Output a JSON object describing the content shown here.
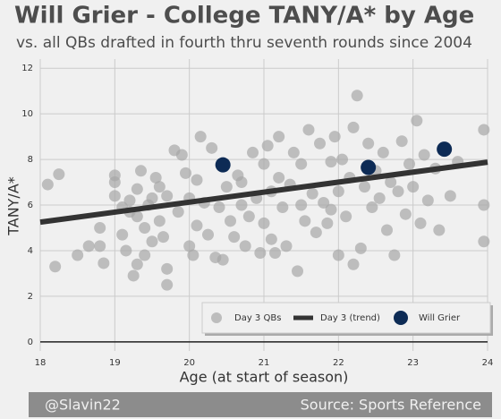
{
  "chart_data": {
    "type": "scatter",
    "title": "Will Grier - College TANY/A* by Age",
    "subtitle": "vs. all QBs drafted in fourth thru seventh rounds since 2004",
    "x_label": "Age (at start of season)",
    "y_label": "TANY/A*",
    "credit": "@Slavin22",
    "source": "Source: Sports Reference",
    "xlim": [
      18,
      24
    ],
    "xticks": [
      18,
      19,
      20,
      21,
      22,
      23,
      24
    ],
    "ylim": [
      -0.4,
      12.4
    ],
    "yticks": [
      0,
      2,
      4,
      6,
      8,
      10,
      12
    ],
    "baseline": 0,
    "grid": true,
    "legend": "lower right",
    "series": [
      {
        "name": "Day 3 QBs",
        "type": "scatter",
        "color": "#a6a6a6",
        "x": [
          18.1,
          18.25,
          18.2,
          18.5,
          18.65,
          18.8,
          18.85,
          18.8,
          19.0,
          19.0,
          19.0,
          19.1,
          19.1,
          19.15,
          19.2,
          19.2,
          19.25,
          19.3,
          19.3,
          19.3,
          19.35,
          19.4,
          19.4,
          19.45,
          19.5,
          19.5,
          19.55,
          19.6,
          19.65,
          19.7,
          19.7,
          19.7,
          19.8,
          19.85,
          19.9,
          19.95,
          20.0,
          20.0,
          20.05,
          20.1,
          20.1,
          20.15,
          20.2,
          20.25,
          20.3,
          20.35,
          20.4,
          20.45,
          20.5,
          20.55,
          20.6,
          20.65,
          20.7,
          20.75,
          20.8,
          20.85,
          20.9,
          20.95,
          21.0,
          21.0,
          21.05,
          21.1,
          21.1,
          21.15,
          21.2,
          21.2,
          21.25,
          21.3,
          21.35,
          21.4,
          21.45,
          21.5,
          21.5,
          21.55,
          21.6,
          21.65,
          21.7,
          21.75,
          21.8,
          21.85,
          21.9,
          21.95,
          22.0,
          22.0,
          22.05,
          22.1,
          22.15,
          22.2,
          22.25,
          22.3,
          22.35,
          22.4,
          22.45,
          22.5,
          22.55,
          22.6,
          22.65,
          22.7,
          22.75,
          22.8,
          22.85,
          22.9,
          22.95,
          23.0,
          23.05,
          23.1,
          23.15,
          23.2,
          23.3,
          23.35,
          23.5,
          23.6,
          23.95,
          23.95,
          23.95,
          22.2,
          21.9,
          20.7,
          19.6
        ],
        "values": [
          6.9,
          7.35,
          3.3,
          3.8,
          4.2,
          4.2,
          3.45,
          5.0,
          6.4,
          7.3,
          7.0,
          5.9,
          4.7,
          4.0,
          5.7,
          6.2,
          2.9,
          3.4,
          5.5,
          6.7,
          7.5,
          3.8,
          5.0,
          6.0,
          4.4,
          6.3,
          7.2,
          5.3,
          4.6,
          6.4,
          2.5,
          3.2,
          8.4,
          5.7,
          8.2,
          7.4,
          6.3,
          4.2,
          3.8,
          7.1,
          5.1,
          9.0,
          6.1,
          4.7,
          8.5,
          3.7,
          5.9,
          3.6,
          6.8,
          5.3,
          4.6,
          7.3,
          6.0,
          4.2,
          5.5,
          8.3,
          6.3,
          3.9,
          7.8,
          5.2,
          8.6,
          6.6,
          4.5,
          3.9,
          9.0,
          7.2,
          5.9,
          4.2,
          6.9,
          8.3,
          3.1,
          6.0,
          7.8,
          5.3,
          9.3,
          6.5,
          4.8,
          8.7,
          6.1,
          5.2,
          7.9,
          9.0,
          3.8,
          6.6,
          8.0,
          5.5,
          7.2,
          9.4,
          10.8,
          4.1,
          6.8,
          8.7,
          5.9,
          7.5,
          6.3,
          8.3,
          4.9,
          7.0,
          3.8,
          6.6,
          8.8,
          5.6,
          7.8,
          6.8,
          9.7,
          5.2,
          8.2,
          6.2,
          7.6,
          4.9,
          6.4,
          7.9,
          9.3,
          6.0,
          4.4,
          3.4,
          5.8,
          7.0,
          6.8
        ]
      },
      {
        "name": "Day 3 (trend)",
        "type": "line",
        "color": "#333333",
        "x": [
          18,
          24
        ],
        "values": [
          5.25,
          7.88
        ]
      },
      {
        "name": "Will Grier",
        "type": "scatter",
        "color": "#0d2b55",
        "x": [
          20.45,
          22.4,
          23.42
        ],
        "values": [
          7.76,
          7.65,
          8.45
        ]
      }
    ]
  }
}
